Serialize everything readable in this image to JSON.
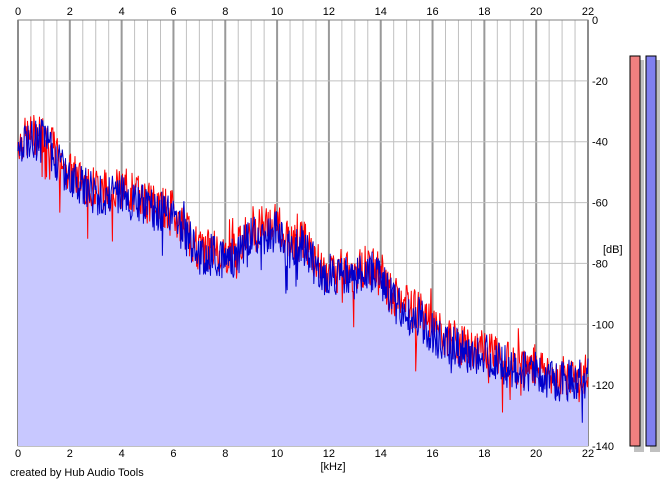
{
  "footer_text": "created by Hub Audio Tools",
  "chart_data": {
    "type": "area",
    "xlabel": "[kHz]",
    "ylabel": "[dB]",
    "xlim": [
      0,
      22
    ],
    "ylim": [
      -140,
      0
    ],
    "xticks": [
      0,
      2,
      4,
      6,
      8,
      10,
      12,
      14,
      16,
      18,
      20,
      22
    ],
    "yticks": [
      0,
      -20,
      -40,
      -60,
      -80,
      -100,
      -120,
      -140
    ],
    "grid": true,
    "colors": {
      "fill": "#c8c8ff",
      "red": "#ff0000",
      "blue": "#0000cc",
      "grid_minor": "#c0c0c0",
      "grid_major": "#999999",
      "meter_left": "#f08080",
      "meter_right": "#8080f0"
    },
    "series": [
      {
        "color": "red",
        "x": [
          0,
          0.5,
          1,
          1.5,
          2,
          2.5,
          3,
          3.5,
          4,
          4.5,
          5,
          5.5,
          6,
          6.5,
          7,
          7.5,
          8,
          8.5,
          9,
          9.5,
          10,
          10.5,
          11,
          11.5,
          12,
          12.5,
          13,
          13.5,
          14,
          14.5,
          15,
          15.5,
          16,
          16.5,
          17,
          17.5,
          18,
          18.5,
          19,
          19.5,
          20,
          20.5,
          21,
          21.5,
          22
        ],
        "y": [
          -40,
          -38,
          -37,
          -44,
          -50,
          -53,
          -55,
          -56,
          -55,
          -57,
          -60,
          -61,
          -63,
          -69,
          -76,
          -75,
          -77,
          -75,
          -67,
          -69,
          -67,
          -74,
          -72,
          -79,
          -84,
          -82,
          -83,
          -80,
          -83,
          -91,
          -94,
          -96,
          -101,
          -104,
          -106,
          -109,
          -108,
          -110,
          -113,
          -114,
          -113,
          -116,
          -117,
          -116,
          -116
        ]
      },
      {
        "color": "blue",
        "x": [
          0,
          0.5,
          1,
          1.5,
          2,
          2.5,
          3,
          3.5,
          4,
          4.5,
          5,
          5.5,
          6,
          6.5,
          7,
          7.5,
          8,
          8.5,
          9,
          9.5,
          10,
          10.5,
          11,
          11.5,
          12,
          12.5,
          13,
          13.5,
          14,
          14.5,
          15,
          15.5,
          16,
          16.5,
          17,
          17.5,
          18,
          18.5,
          19,
          19.5,
          20,
          20.5,
          21,
          21.5,
          22
        ],
        "y": [
          -42,
          -40,
          -39,
          -46,
          -52,
          -55,
          -57,
          -58,
          -57,
          -59,
          -62,
          -63,
          -65,
          -71,
          -78,
          -77,
          -79,
          -77,
          -70,
          -71,
          -69,
          -76,
          -74,
          -81,
          -86,
          -84,
          -85,
          -82,
          -85,
          -93,
          -96,
          -98,
          -103,
          -106,
          -108,
          -111,
          -110,
          -112,
          -115,
          -116,
          -115,
          -118,
          -119,
          -118,
          -118
        ]
      }
    ]
  }
}
